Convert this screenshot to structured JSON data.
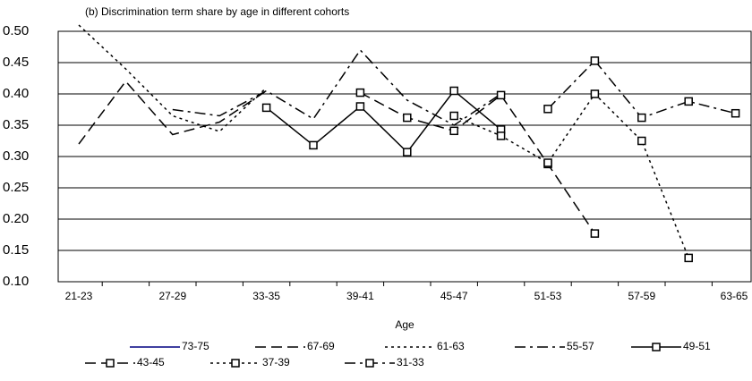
{
  "chart_data": {
    "type": "line",
    "title": "(b) Discrimination term share by age in different cohorts",
    "x_label": "Age",
    "categories": [
      "21-23",
      null,
      "27-29",
      null,
      "33-35",
      null,
      "39-41",
      null,
      "45-47",
      null,
      "51-53",
      null,
      "57-59",
      null,
      "63-65"
    ],
    "ylim": [
      0.1,
      0.5
    ],
    "yticks": [
      {
        "value": 0.1,
        "label": "0.10"
      },
      {
        "value": 0.15,
        "label": "0.15"
      },
      {
        "value": 0.2,
        "label": "0.20"
      },
      {
        "value": 0.25,
        "label": "0.25"
      },
      {
        "value": 0.3,
        "label": "0.30"
      },
      {
        "value": 0.35,
        "label": "0.35"
      },
      {
        "value": 0.4,
        "label": "0.40"
      },
      {
        "value": 0.45,
        "label": "0.45"
      },
      {
        "value": 0.5,
        "label": "0.50"
      }
    ],
    "grid": true,
    "series": [
      {
        "name": "73-75",
        "color": "#000080",
        "dash": "none",
        "marker": false,
        "values": [
          null,
          null,
          null,
          null,
          null,
          null,
          null,
          null,
          null,
          null,
          null,
          null,
          null,
          null,
          null
        ]
      },
      {
        "name": "67-69",
        "color": "#000000",
        "dash": "12,6",
        "marker": false,
        "values": [
          0.32,
          0.42,
          0.335,
          0.355,
          0.405,
          null,
          null,
          null,
          null,
          null,
          null,
          null,
          null,
          null,
          null
        ]
      },
      {
        "name": "61-63",
        "color": "#000000",
        "dash": "3,4",
        "marker": false,
        "values": [
          0.51,
          0.44,
          0.365,
          0.34,
          0.41,
          null,
          null,
          null,
          null,
          null,
          null,
          null,
          null,
          null,
          null
        ]
      },
      {
        "name": "55-57",
        "color": "#000000",
        "dash": "12,5,3,5",
        "marker": false,
        "values": [
          null,
          null,
          0.375,
          0.365,
          0.405,
          0.36,
          0.47,
          0.39,
          0.35,
          0.4,
          null,
          null,
          null,
          null,
          null
        ]
      },
      {
        "name": "49-51",
        "color": "#000000",
        "dash": "none",
        "marker": true,
        "values": [
          null,
          null,
          null,
          null,
          0.378,
          0.318,
          0.38,
          0.307,
          0.405,
          0.343,
          null,
          null,
          null,
          null,
          null
        ]
      },
      {
        "name": "43-45",
        "color": "#000000",
        "dash": "12,6",
        "marker": true,
        "values": [
          null,
          null,
          null,
          null,
          null,
          null,
          0.402,
          0.362,
          0.341,
          0.398,
          0.288,
          0.177,
          null,
          null,
          null
        ]
      },
      {
        "name": "37-39",
        "color": "#000000",
        "dash": "3,4",
        "marker": true,
        "values": [
          null,
          null,
          null,
          null,
          null,
          null,
          null,
          null,
          0.365,
          0.333,
          0.29,
          0.4,
          0.325,
          0.138,
          null
        ]
      },
      {
        "name": "31-33",
        "color": "#000000",
        "dash": "12,5,3,5",
        "marker": true,
        "values": [
          null,
          null,
          null,
          null,
          null,
          null,
          null,
          null,
          null,
          null,
          0.376,
          0.453,
          0.362,
          0.388,
          0.369
        ]
      }
    ]
  }
}
